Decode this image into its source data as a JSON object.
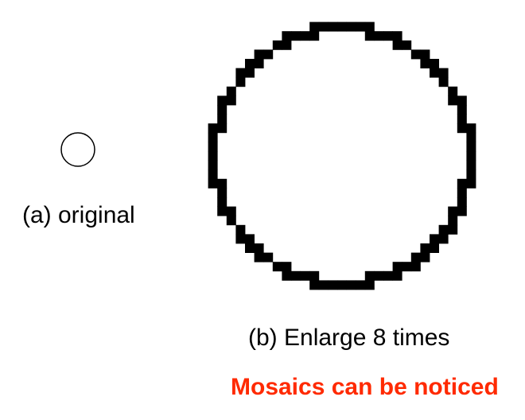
{
  "figure": {
    "original_caption": "(a) original",
    "enlarged_caption": "(b) Enlarge 8 times",
    "note": "Mosaics can be noticed",
    "note_color": "#ff2a00",
    "magnification": 8,
    "ink_color": "#000000",
    "background_color": "#ffffff"
  }
}
